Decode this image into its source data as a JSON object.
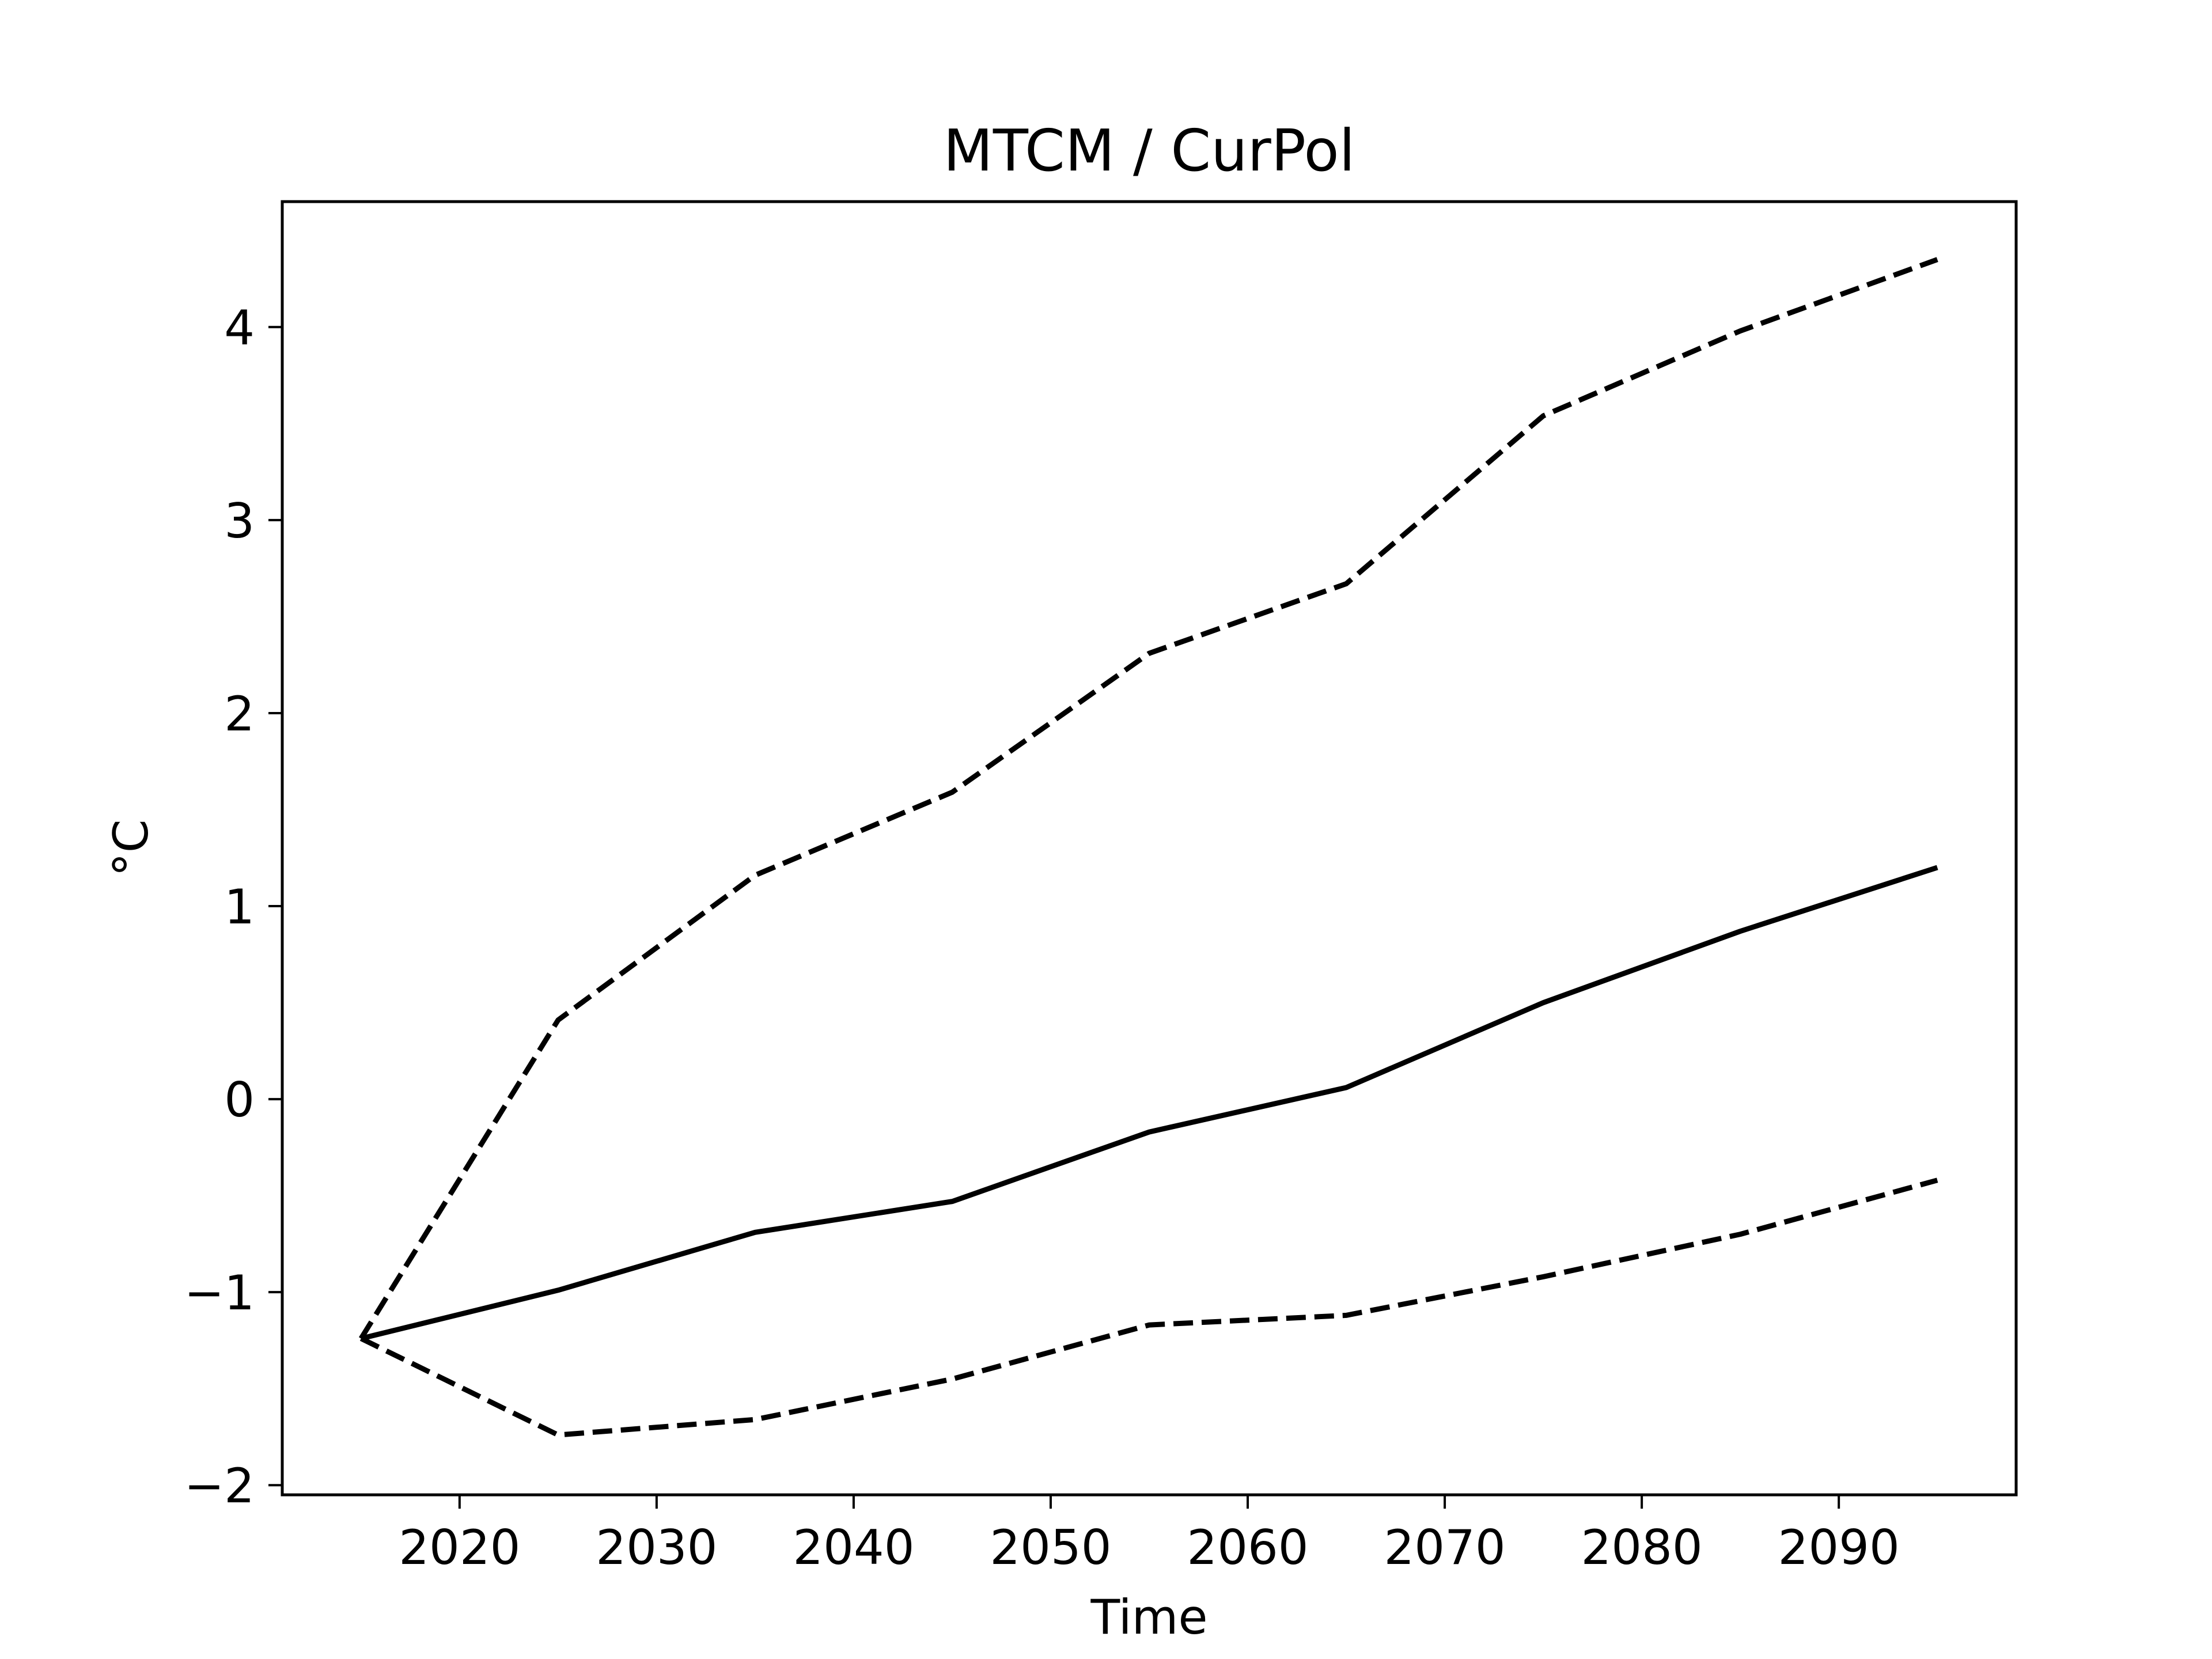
{
  "chart_data": {
    "type": "line",
    "title": "MTCM / CurPol",
    "xlabel": "Time",
    "ylabel": "°C",
    "xlim": [
      2011,
      2099
    ],
    "ylim": [
      -2.05,
      4.65
    ],
    "x_ticks": [
      2020,
      2030,
      2040,
      2050,
      2060,
      2070,
      2080,
      2090
    ],
    "y_ticks": [
      -2,
      -1,
      0,
      1,
      2,
      3,
      4
    ],
    "y_tick_labels": [
      "−2",
      "−1",
      "0",
      "1",
      "2",
      "3",
      "4"
    ],
    "grid": false,
    "x": [
      2015,
      2025,
      2035,
      2045,
      2055,
      2065,
      2075,
      2085,
      2095
    ],
    "series": [
      {
        "role": "central",
        "style": "solid",
        "color": "#000000",
        "values": [
          -1.24,
          -0.99,
          -0.69,
          -0.53,
          -0.17,
          0.06,
          0.5,
          0.87,
          1.2
        ]
      },
      {
        "role": "upper",
        "style": "dashed",
        "color": "#000000",
        "values": [
          -1.24,
          0.41,
          1.16,
          1.59,
          2.31,
          2.67,
          3.54,
          3.98,
          4.35
        ]
      },
      {
        "role": "lower",
        "style": "dashed",
        "color": "#000000",
        "values": [
          -1.24,
          -1.74,
          -1.66,
          -1.45,
          -1.17,
          -1.12,
          -0.92,
          -0.7,
          -0.42
        ]
      }
    ]
  }
}
